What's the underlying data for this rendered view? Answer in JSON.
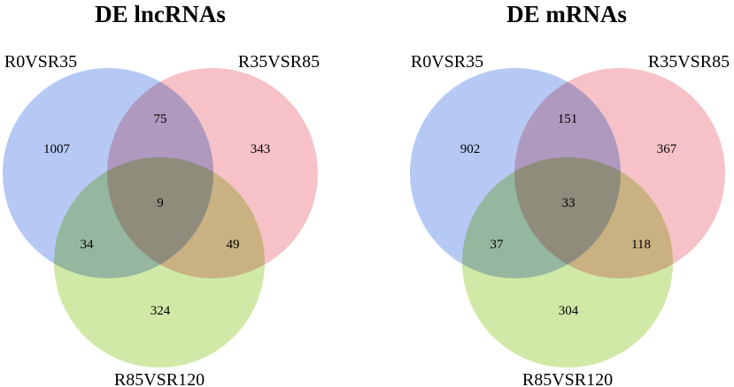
{
  "colors": {
    "set_a": "#a9c0f2",
    "set_b": "#f4b7bd",
    "set_c": "#c9e596"
  },
  "diagrams": [
    {
      "title": "DE lncRNAs",
      "set_labels": {
        "a": "R0VSR35",
        "b": "R35VSR85",
        "c": "R85VSR120"
      },
      "counts": {
        "a_only": "1007",
        "b_only": "343",
        "c_only": "324",
        "ab": "75",
        "ac": "34",
        "bc": "49",
        "abc": "9"
      }
    },
    {
      "title": "DE mRNAs",
      "set_labels": {
        "a": "R0VSR35",
        "b": "R35VSR85",
        "c": "R85VSR120"
      },
      "counts": {
        "a_only": "902",
        "b_only": "367",
        "c_only": "304",
        "ab": "151",
        "ac": "37",
        "bc": "118",
        "abc": "33"
      }
    }
  ]
}
